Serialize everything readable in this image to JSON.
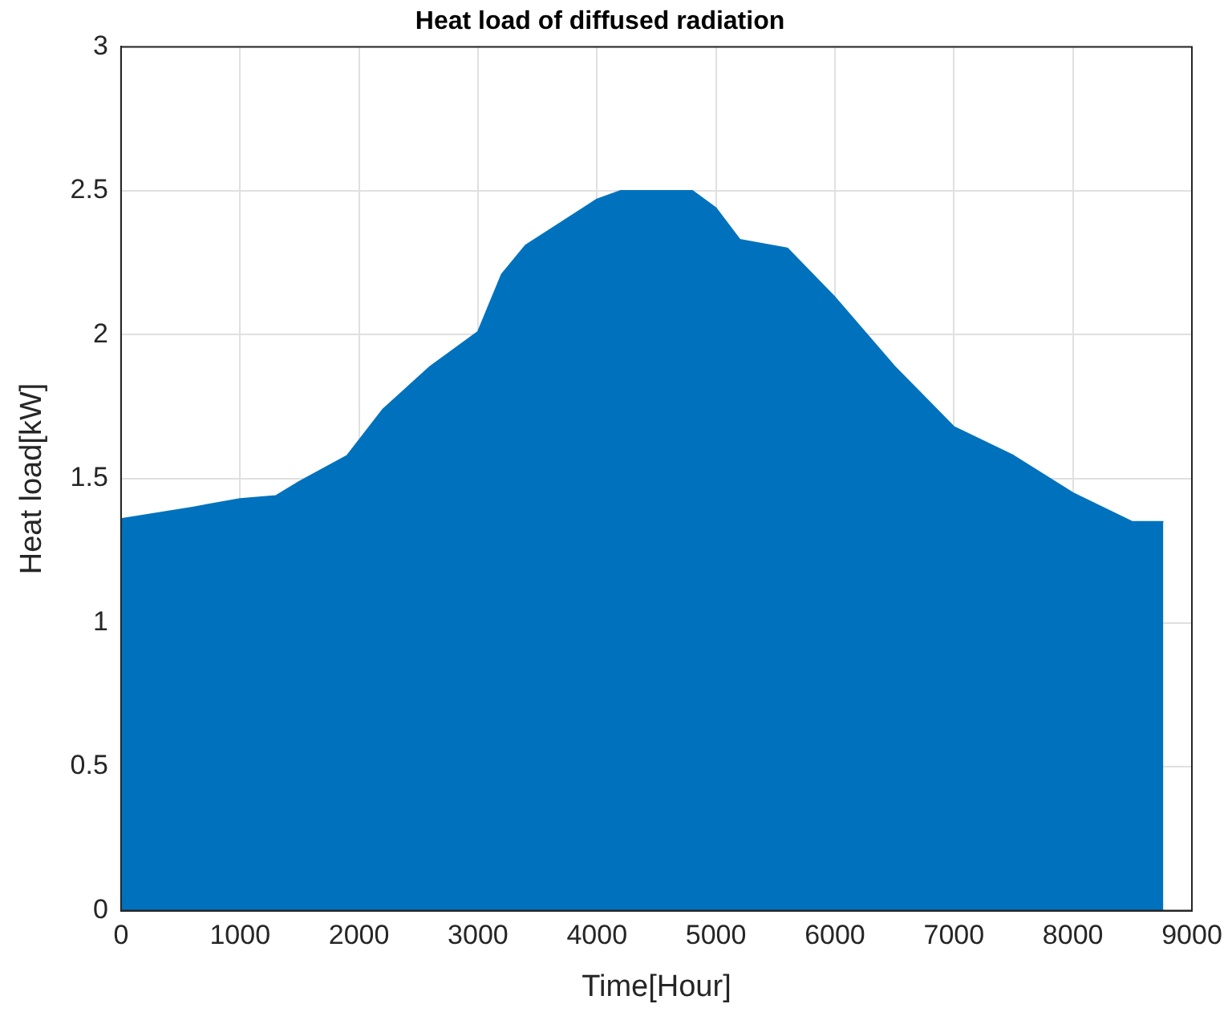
{
  "chart_data": {
    "type": "area",
    "title": "Heat load of diffused radiation",
    "xlabel": "Time[Hour]",
    "ylabel": "Heat load[kW]",
    "x": [
      0,
      600,
      1000,
      1300,
      1500,
      1900,
      2200,
      2600,
      3000,
      3200,
      3400,
      4000,
      4200,
      4800,
      5000,
      5200,
      5600,
      6000,
      6500,
      7000,
      7500,
      8000,
      8500,
      8760
    ],
    "series": [
      {
        "color": "#0072bd",
        "values": [
          1.36,
          1.4,
          1.43,
          1.44,
          1.49,
          1.58,
          1.74,
          1.89,
          2.01,
          2.21,
          2.31,
          2.47,
          2.5,
          2.5,
          2.44,
          2.33,
          2.3,
          2.13,
          1.89,
          1.68,
          1.58,
          1.45,
          1.35,
          1.35
        ]
      }
    ],
    "xlim": [
      0,
      9000
    ],
    "xticks": [
      0,
      1000,
      2000,
      3000,
      4000,
      5000,
      6000,
      7000,
      8000,
      9000
    ],
    "ylim": [
      0,
      3
    ],
    "yticks": [
      0,
      0.5,
      1,
      1.5,
      2,
      2.5,
      3
    ],
    "grid": true,
    "legend": false
  }
}
